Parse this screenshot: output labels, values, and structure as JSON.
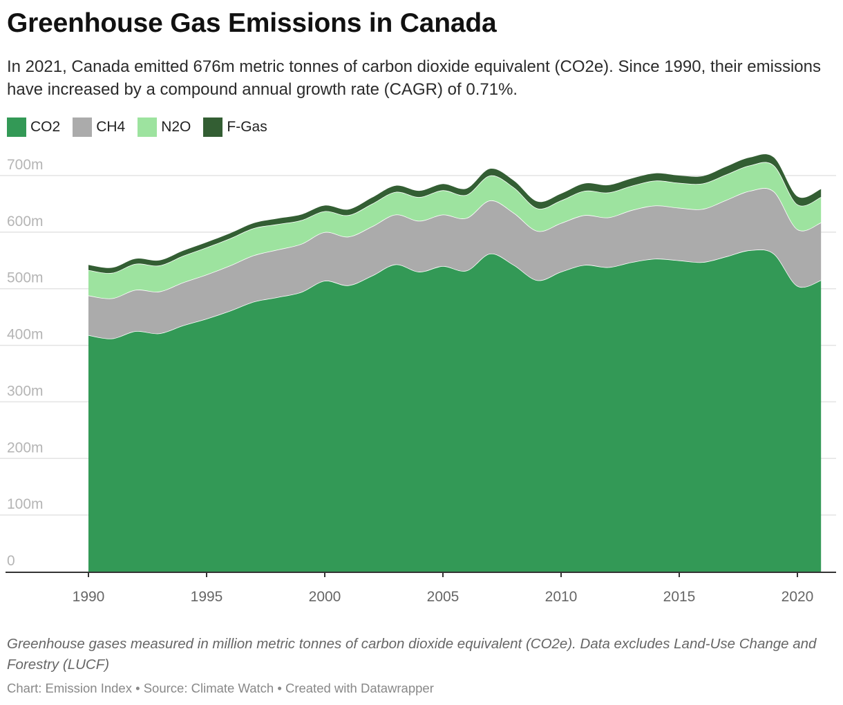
{
  "header": {
    "title": "Greenhouse Gas Emissions in Canada",
    "subtitle": "In 2021, Canada emitted 676m metric tonnes of carbon dioxide equivalent (CO2e). Since 1990, their emissions have increased by a compound annual growth rate (CAGR) of 0.71%."
  },
  "footer": {
    "notes": "Greenhouse gases measured in million metric tonnes of carbon dioxide equivalent (CO2e). Data excludes Land-Use Change and Forestry (LUCF)",
    "credits": "Chart: Emission Index • Source: Climate Watch • Created with Datawrapper"
  },
  "chart_data": {
    "type": "area",
    "stacked": true,
    "title": "Greenhouse Gas Emissions in Canada",
    "xlabel": "",
    "ylabel": "",
    "xlim": [
      1987,
      2022
    ],
    "ylim": [
      0,
      700
    ],
    "grid": true,
    "legend_position": "top-left",
    "x_ticks": [
      "1990",
      "1995",
      "2000",
      "2005",
      "2010",
      "2015",
      "2020"
    ],
    "y_ticks": [
      "0",
      "100m",
      "200m",
      "300m",
      "400m",
      "500m",
      "600m",
      "700m"
    ],
    "x": [
      1990,
      1991,
      1992,
      1993,
      1994,
      1995,
      1996,
      1997,
      1998,
      1999,
      2000,
      2001,
      2002,
      2003,
      2004,
      2005,
      2006,
      2007,
      2008,
      2009,
      2010,
      2011,
      2012,
      2013,
      2014,
      2015,
      2016,
      2017,
      2018,
      2019,
      2020,
      2021
    ],
    "series": [
      {
        "name": "CO2",
        "color": "#339956",
        "values": [
          418,
          412,
          425,
          421,
          435,
          447,
          461,
          477,
          485,
          494,
          514,
          506,
          523,
          543,
          530,
          540,
          532,
          562,
          542,
          515,
          530,
          542,
          538,
          547,
          553,
          550,
          547,
          557,
          568,
          562,
          505,
          515
        ]
      },
      {
        "name": "CH4",
        "color": "#ababab",
        "values": [
          70,
          71,
          73,
          74,
          76,
          78,
          80,
          82,
          84,
          85,
          86,
          86,
          87,
          88,
          90,
          91,
          93,
          94,
          92,
          87,
          86,
          88,
          88,
          92,
          94,
          93,
          94,
          100,
          105,
          110,
          100,
          102
        ]
      },
      {
        "name": "N2O",
        "color": "#9de39f",
        "values": [
          45,
          45,
          46,
          46,
          47,
          48,
          48,
          48,
          45,
          42,
          37,
          38,
          40,
          40,
          42,
          43,
          41,
          44,
          45,
          40,
          40,
          43,
          44,
          43,
          44,
          44,
          45,
          45,
          45,
          46,
          44,
          45
        ]
      },
      {
        "name": "F-Gas",
        "color": "#335e33",
        "values": [
          9,
          9,
          9,
          9,
          9,
          9,
          9,
          9,
          10,
          10,
          10,
          10,
          11,
          11,
          11,
          11,
          11,
          12,
          12,
          12,
          12,
          13,
          13,
          13,
          13,
          13,
          13,
          14,
          14,
          14,
          14,
          14
        ]
      }
    ]
  }
}
